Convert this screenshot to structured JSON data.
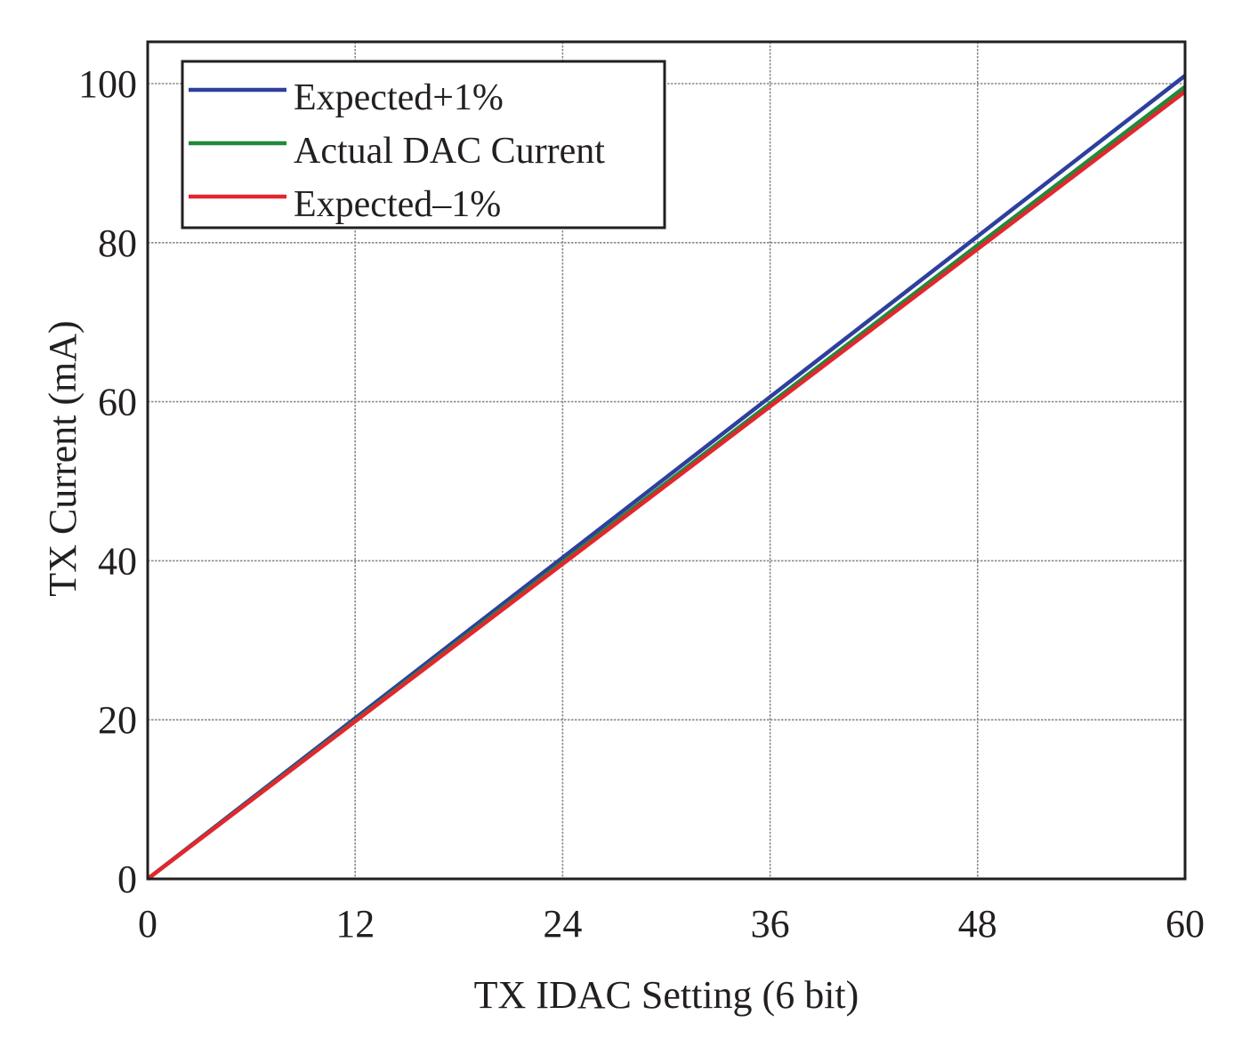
{
  "chart_data": {
    "type": "line",
    "title": "",
    "xlabel": "TX IDAC Setting (6 bit)",
    "ylabel": "TX Current (mA)",
    "xlim": [
      0,
      60
    ],
    "ylim": [
      0,
      100
    ],
    "grid": true,
    "xticks": [
      0,
      12,
      24,
      36,
      48,
      60
    ],
    "yticks": [
      0,
      20,
      40,
      60,
      80,
      100
    ],
    "xtick_labels": [
      "0",
      "12",
      "24",
      "36",
      "48",
      "60"
    ],
    "ytick_labels": [
      "0",
      "20",
      "40",
      "60",
      "80",
      "100"
    ],
    "legend_position": "top-left",
    "series": [
      {
        "name": "Expected+1%",
        "color": "#2e3f9d",
        "x": [
          0,
          60
        ],
        "y": [
          0,
          101
        ]
      },
      {
        "name": "Actual DAC Current",
        "color": "#1e8a3a",
        "x": [
          0,
          60
        ],
        "y": [
          0,
          99.6
        ]
      },
      {
        "name": "Expected–1%",
        "color": "#e3262d",
        "x": [
          0,
          60
        ],
        "y": [
          0,
          99
        ]
      }
    ]
  }
}
